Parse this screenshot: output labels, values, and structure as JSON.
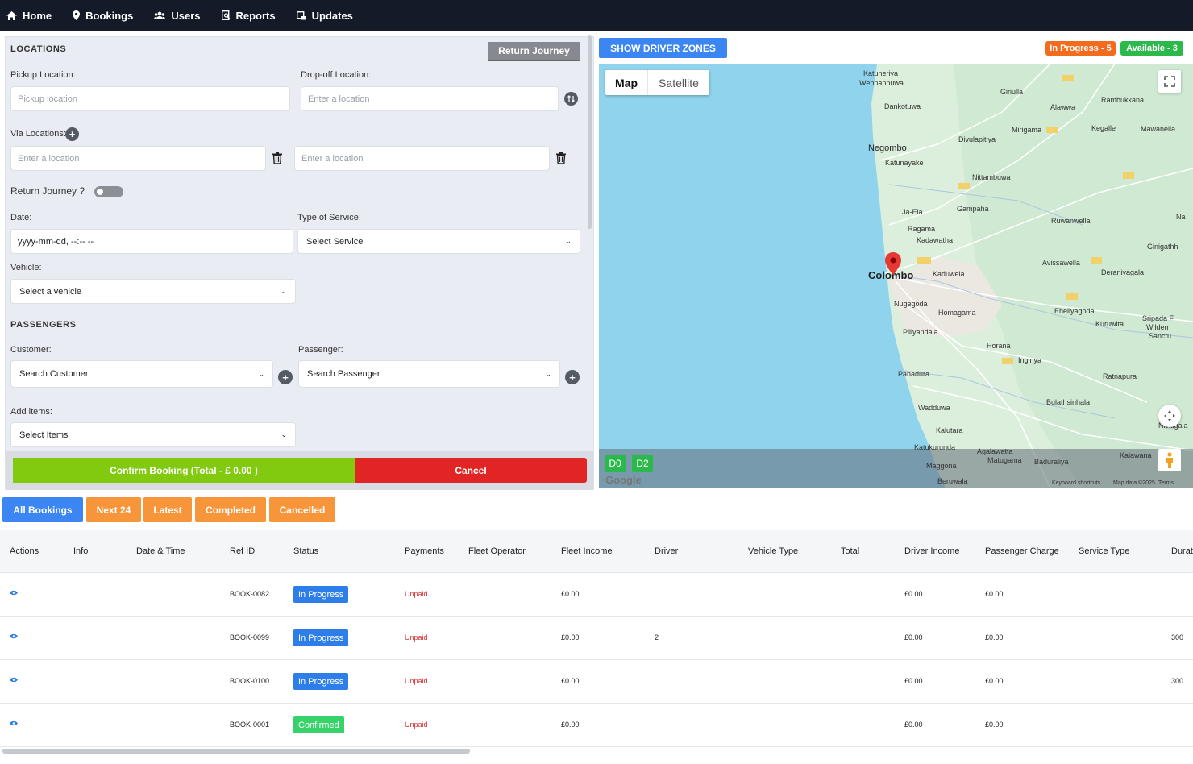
{
  "nav": {
    "items": [
      {
        "label": "Home",
        "icon": "home-icon"
      },
      {
        "label": "Bookings",
        "icon": "pin-icon"
      },
      {
        "label": "Users",
        "icon": "users-icon"
      },
      {
        "label": "Reports",
        "icon": "report-icon"
      },
      {
        "label": "Updates",
        "icon": "update-icon"
      }
    ]
  },
  "form": {
    "locations_title": "LOCATIONS",
    "return_journey_button": "Return Journey",
    "pickup_label": "Pickup Location:",
    "pickup_placeholder": "Pickup location",
    "dropoff_label": "Drop-off Location:",
    "dropoff_placeholder": "Enter a location",
    "via_label": "Via Locations:",
    "via1_placeholder": "Enter a location",
    "via2_placeholder": "Enter a location",
    "return_label": "Return Journey ?",
    "date_label": "Date:",
    "date_value": "yyyy-mm-dd, --:-- --",
    "service_label": "Type of Service:",
    "service_value": "Select Service",
    "vehicle_label": "Vehicle:",
    "vehicle_value": "Select a vehicle",
    "passengers_title": "PASSENGERS",
    "customer_label": "Customer:",
    "customer_value": "Search Customer",
    "passenger_label": "Passenger:",
    "passenger_value": "Search Passenger",
    "items_label": "Add items:",
    "items_value": "Select Items",
    "confirm_button": "Confirm Booking (Total - £ 0.00 )",
    "cancel_button": "Cancel"
  },
  "map": {
    "zones_button": "SHOW DRIVER ZONES",
    "in_progress_badge": "In Progress - 5",
    "available_badge": "Available - 3",
    "tab_map": "Map",
    "tab_satellite": "Satellite",
    "drivers": [
      "D0",
      "D2"
    ],
    "google": "Google",
    "shortcuts": "Keyboard shortcuts",
    "map_data": "Map data ©2025",
    "terms": "Terms",
    "places": {
      "katuneriya": "Katuneriya",
      "wennappuwa": "Wennappuwa",
      "giriulla": "Giriulla",
      "alawwa": "Alawwa",
      "rambukkana": "Rambukkana",
      "dankotuwa": "Dankotuwa",
      "mirigama": "Mirigama",
      "kegalle": "Kegalle",
      "mawanella": "Mawanella",
      "divulapitiya": "Divulapitiya",
      "negombo": "Negombo",
      "katunayake": "Katunayake",
      "nittambuwa": "Nittambuwa",
      "gampaha": "Gampaha",
      "jaela": "Ja-Ela",
      "ragama": "Ragama",
      "kadawatha": "Kadawatha",
      "ruwanwella": "Ruwanwella",
      "colombo": "Colombo",
      "kaduwela": "Kaduwela",
      "avissawella": "Avissawella",
      "deraniyagala": "Deraniyagala",
      "nugegoda": "Nugegoda",
      "homagama": "Homagama",
      "eheliyagoda": "Eheliyagoda",
      "piliyandala": "Piliyandala",
      "kuruwita": "Kuruwita",
      "horana": "Horana",
      "ingiriya": "Ingiriya",
      "panadura": "Panadura",
      "ratnapura": "Ratnapura",
      "bulathsinhala": "Bulathsinhala",
      "wadduwa": "Wadduwa",
      "kalutara": "Kalutara",
      "katukurunda": "Katukurunda",
      "agalawatta": "Agalawatta",
      "matugama": "Matugama",
      "baduraliya": "Baduraliya",
      "kalawana": "Kalawana",
      "maggona": "Maggona",
      "beruwala": "Beruwala",
      "ginigathh": "Ginigathh",
      "sripada": "Sripada F",
      "wilderness": "Wildern",
      "sanctuary": "Sanctu",
      "nivitigala": "Nivitigala",
      "na": "Na"
    }
  },
  "filters": [
    "All Bookings",
    "Next 24",
    "Latest",
    "Completed",
    "Cancelled"
  ],
  "table": {
    "headers": [
      "Actions",
      "Info",
      "Date & Time",
      "Ref ID",
      "Status",
      "Payments",
      "Fleet Operator",
      "Fleet Income",
      "Driver",
      "Vehicle Type",
      "Total",
      "Driver Income",
      "Passenger Charge",
      "Service Type",
      "Durat"
    ],
    "rows": [
      {
        "ref": "BOOK-0082",
        "status": "In Progress",
        "payment": "Unpaid",
        "fleet_income": "£0.00",
        "driver": "",
        "driver_income": "£0.00",
        "passenger_charge": "£0.00",
        "duration": ""
      },
      {
        "ref": "BOOK-0099",
        "status": "In Progress",
        "payment": "Unpaid",
        "fleet_income": "£0.00",
        "driver": "2",
        "driver_income": "£0.00",
        "passenger_charge": "£0.00",
        "duration": "300"
      },
      {
        "ref": "BOOK-0100",
        "status": "In Progress",
        "payment": "Unpaid",
        "fleet_income": "£0.00",
        "driver": "",
        "driver_income": "£0.00",
        "passenger_charge": "£0.00",
        "duration": "300"
      },
      {
        "ref": "BOOK-0001",
        "status": "Confirmed",
        "payment": "Unpaid",
        "fleet_income": "£0.00",
        "driver": "",
        "driver_income": "£0.00",
        "passenger_charge": "£0.00",
        "duration": ""
      }
    ]
  },
  "colors": {
    "nav_bg": "#151a28",
    "accent_blue": "#3b86f2",
    "orange": "#f7953a",
    "green": "#82ca10",
    "red": "#e12424"
  }
}
